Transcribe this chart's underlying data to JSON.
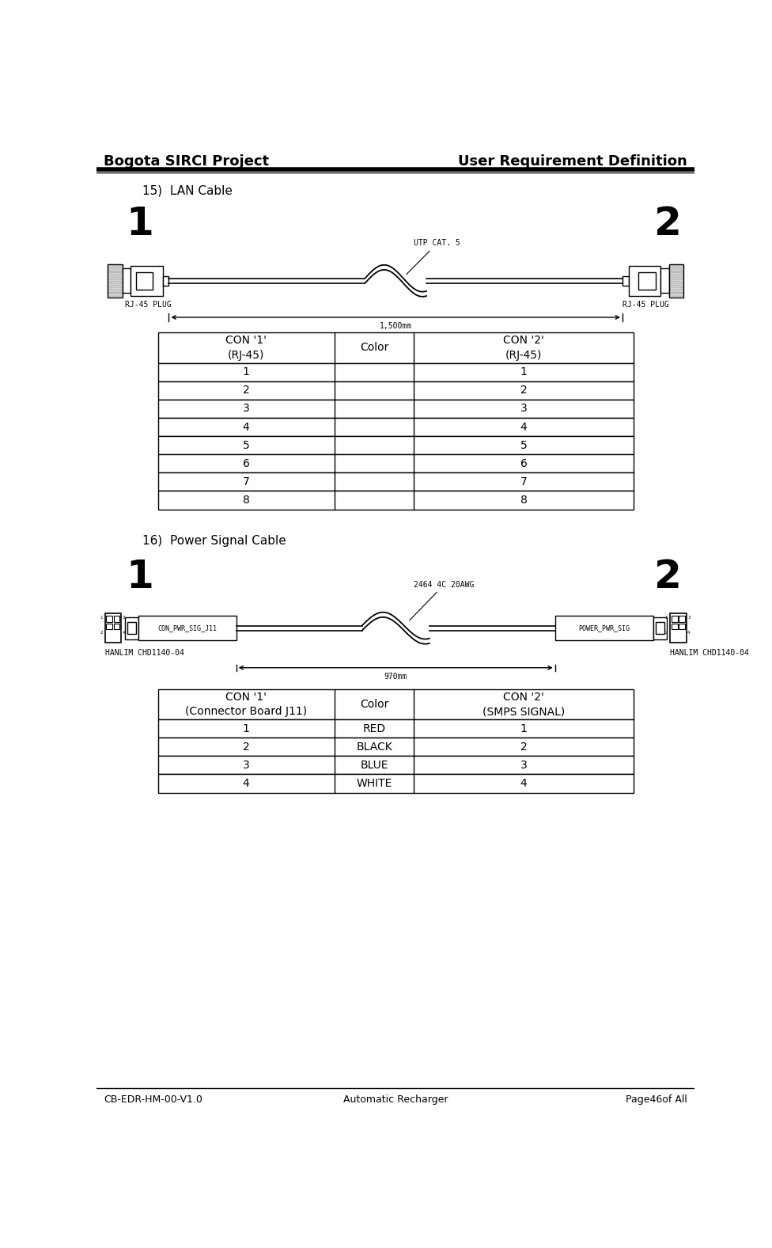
{
  "header_left": "Bogota SIRCI Project",
  "header_right": "User Requirement Definition",
  "footer_left": "CB-EDR-HM-00-V1.0",
  "footer_center": "Automatic Recharger",
  "footer_right": "Page46of All",
  "section15_label": "15)  LAN Cable",
  "section15_con1_label": "CON '1'\n(RJ-45)",
  "section15_color_label": "Color",
  "section15_con2_label": "CON '2'\n(RJ-45)",
  "section15_rows": [
    "1",
    "2",
    "3",
    "4",
    "5",
    "6",
    "7",
    "8"
  ],
  "section15_con2_vals": [
    "1",
    "2",
    "3",
    "4",
    "5",
    "6",
    "7",
    "8"
  ],
  "lan_cable_type": "UTP CAT. 5",
  "lan_cable_length": "1,500mm",
  "lan_plug_label": "RJ-45 PLUG",
  "section16_label": "16)  Power Signal Cable",
  "section16_con1_label": "CON '1'\n(Connector Board J11)",
  "section16_color_label": "Color",
  "section16_con2_label": "CON '2'\n(SMPS SIGNAL)",
  "section16_rows": [
    "1",
    "2",
    "3",
    "4"
  ],
  "section16_colors": [
    "RED",
    "BLACK",
    "BLUE",
    "WHITE"
  ],
  "section16_con2_vals": [
    "1",
    "2",
    "3",
    "4"
  ],
  "power_cable_type": "2464 4C 20AWG",
  "power_cable_length": "970mm",
  "power_con1_label": "CON_PWR_SIG_J11",
  "power_con2_label": "POWER_PWR_SIG",
  "power_connector_label": "HANLIM CHD1140-04",
  "num1_label": "1",
  "num2_label": "2",
  "bg_color": "#ffffff"
}
